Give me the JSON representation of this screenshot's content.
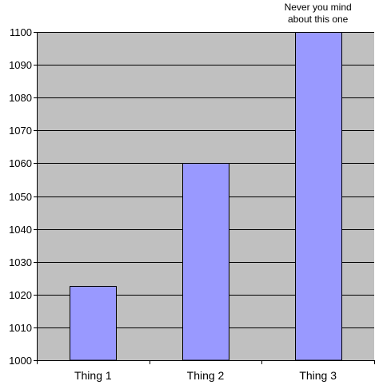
{
  "chart_data": {
    "type": "bar",
    "categories": [
      "Thing 1",
      "Thing 2",
      "Thing 3"
    ],
    "values": [
      1022.7,
      1060,
      1101
    ],
    "ylim": [
      1000,
      1100
    ],
    "yticks": [
      1000,
      1010,
      1020,
      1030,
      1040,
      1050,
      1060,
      1070,
      1080,
      1090,
      1100
    ],
    "title": "",
    "xlabel": "",
    "ylabel": "",
    "grid": true,
    "annotation": {
      "target": "Thing 3",
      "lines": [
        "Never you mind",
        "about this one"
      ]
    },
    "colors": {
      "bar": "#9999ff",
      "plot_background": "#c0c0c0",
      "gridline": "#000000"
    }
  }
}
